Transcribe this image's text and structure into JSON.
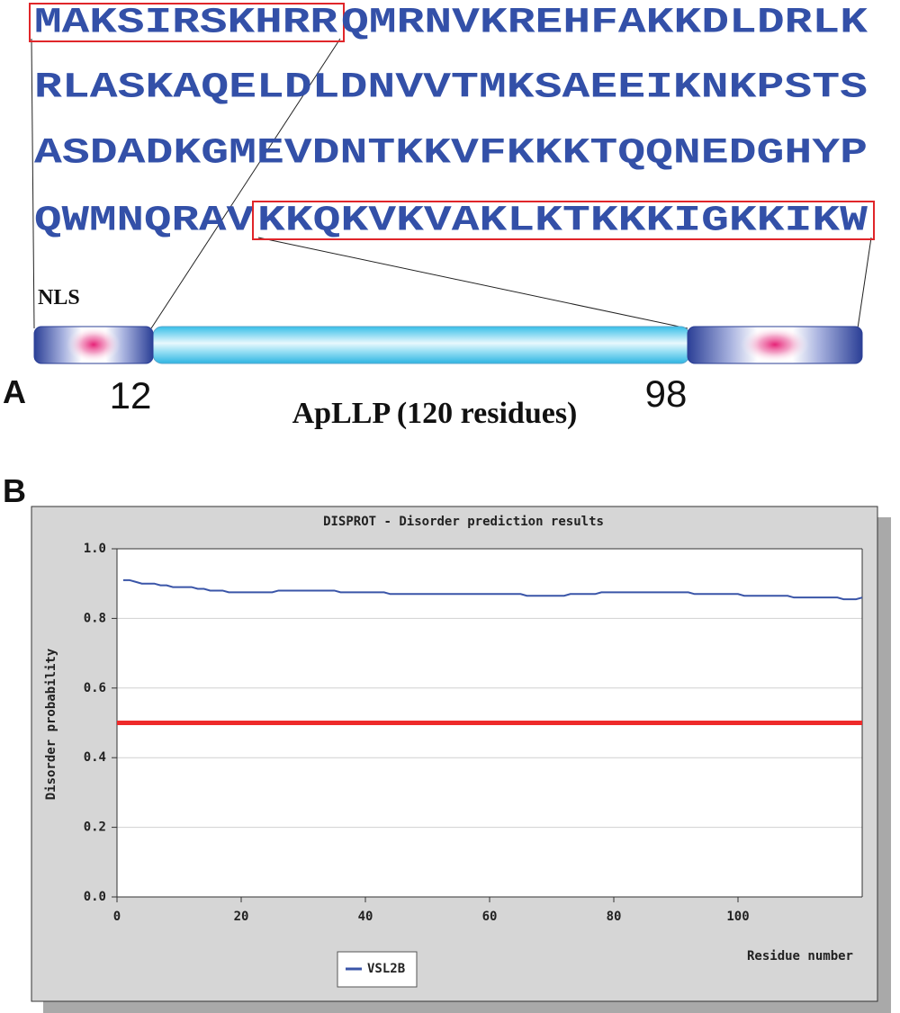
{
  "panel_a": {
    "label": "A",
    "sequence_lines": [
      [
        {
          "text": "MAKSIRSKHRR",
          "boxed": true
        },
        {
          "text": "QMRNVKREHFAKKDLDRLK"
        }
      ],
      [
        {
          "text": "RLASKAQELDLDNVVTMKSAEEIKNKPSTS"
        }
      ],
      [
        {
          "text": "ASDADKGMEVDNTKKVFKKKTQQNEDGHYP"
        }
      ],
      [
        {
          "text": "QWMNQRAV"
        },
        {
          "text": "KKQKVKVAKLKTKKKIGKKIKW",
          "boxed": true
        }
      ]
    ],
    "domain_label": "NLS",
    "marker_left": "12",
    "marker_right": "98",
    "protein_label": "ApLLP (120 residues)"
  },
  "panel_b_label": "B",
  "chart_data": {
    "type": "line",
    "title": "DISPROT - Disorder prediction results",
    "x_label": "Residue number",
    "y_label": "Disorder probability",
    "x": [
      1,
      2,
      3,
      4,
      5,
      6,
      7,
      8,
      9,
      10,
      11,
      12,
      13,
      14,
      15,
      16,
      17,
      18,
      19,
      20,
      21,
      22,
      23,
      24,
      25,
      26,
      27,
      28,
      29,
      30,
      31,
      32,
      33,
      34,
      35,
      36,
      37,
      38,
      39,
      40,
      41,
      42,
      43,
      44,
      45,
      46,
      47,
      48,
      49,
      50,
      51,
      52,
      53,
      54,
      55,
      56,
      57,
      58,
      59,
      60,
      61,
      62,
      63,
      64,
      65,
      66,
      67,
      68,
      69,
      70,
      71,
      72,
      73,
      74,
      75,
      76,
      77,
      78,
      79,
      80,
      81,
      82,
      83,
      84,
      85,
      86,
      87,
      88,
      89,
      90,
      91,
      92,
      93,
      94,
      95,
      96,
      97,
      98,
      99,
      100,
      101,
      102,
      103,
      104,
      105,
      106,
      107,
      108,
      109,
      110,
      111,
      112,
      113,
      114,
      115,
      116,
      117,
      118,
      119,
      120
    ],
    "series": [
      {
        "name": "VSL2B",
        "color": "#3a55a8",
        "values": [
          0.91,
          0.91,
          0.905,
          0.9,
          0.9,
          0.9,
          0.895,
          0.895,
          0.89,
          0.89,
          0.89,
          0.89,
          0.885,
          0.885,
          0.88,
          0.88,
          0.88,
          0.875,
          0.875,
          0.875,
          0.875,
          0.875,
          0.875,
          0.875,
          0.875,
          0.88,
          0.88,
          0.88,
          0.88,
          0.88,
          0.88,
          0.88,
          0.88,
          0.88,
          0.88,
          0.875,
          0.875,
          0.875,
          0.875,
          0.875,
          0.875,
          0.875,
          0.875,
          0.87,
          0.87,
          0.87,
          0.87,
          0.87,
          0.87,
          0.87,
          0.87,
          0.87,
          0.87,
          0.87,
          0.87,
          0.87,
          0.87,
          0.87,
          0.87,
          0.87,
          0.87,
          0.87,
          0.87,
          0.87,
          0.87,
          0.865,
          0.865,
          0.865,
          0.865,
          0.865,
          0.865,
          0.865,
          0.87,
          0.87,
          0.87,
          0.87,
          0.87,
          0.875,
          0.875,
          0.875,
          0.875,
          0.875,
          0.875,
          0.875,
          0.875,
          0.875,
          0.875,
          0.875,
          0.875,
          0.875,
          0.875,
          0.875,
          0.87,
          0.87,
          0.87,
          0.87,
          0.87,
          0.87,
          0.87,
          0.87,
          0.865,
          0.865,
          0.865,
          0.865,
          0.865,
          0.865,
          0.865,
          0.865,
          0.86,
          0.86,
          0.86,
          0.86,
          0.86,
          0.86,
          0.86,
          0.86,
          0.855,
          0.855,
          0.855,
          0.86
        ]
      }
    ],
    "threshold": {
      "value": 0.5,
      "color": "#ee2a2a"
    },
    "xlim": [
      0,
      120
    ],
    "xticks": [
      0,
      20,
      40,
      60,
      80,
      100
    ],
    "ylim": [
      0,
      1
    ],
    "yticks": [
      {
        "value": 0,
        "label": "0.0"
      },
      0.2,
      0.4,
      0.6,
      0.8,
      {
        "value": 1,
        "label": "1.0"
      }
    ],
    "grid": true
  }
}
